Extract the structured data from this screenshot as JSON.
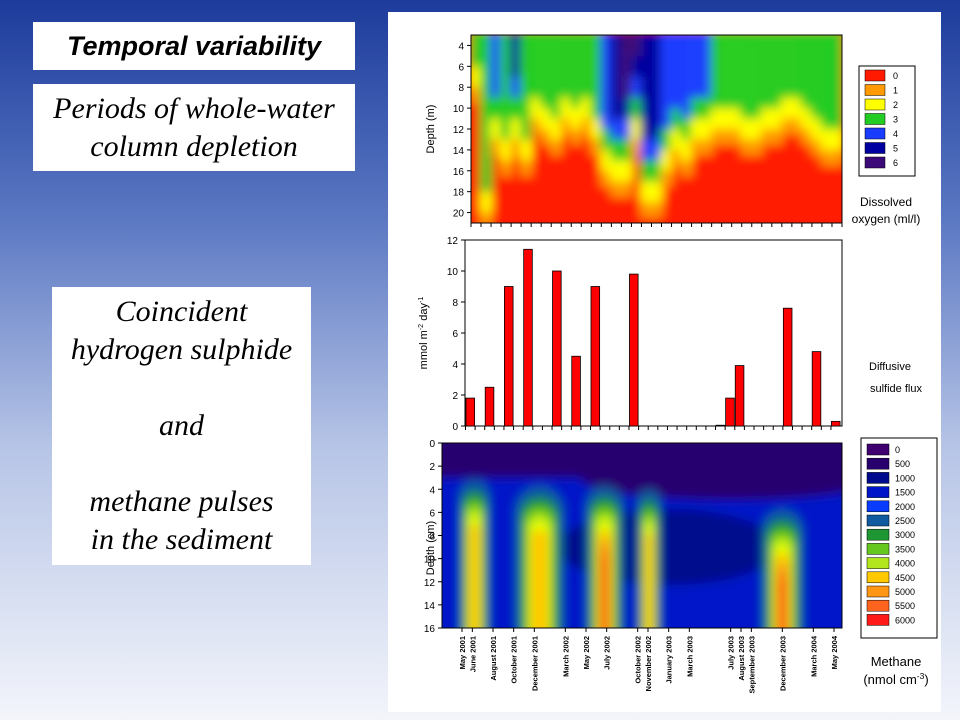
{
  "slide": {
    "title": "Temporal variability",
    "periods_text": "Periods of whole-water column depletion",
    "coincident_text": "Coincident\nhydrogen sulphide\n\nand\n\nmethane pulses\nin the sediment"
  },
  "colors": {
    "oxygen_scale": [
      "#ff1a00",
      "#ff9a00",
      "#ffff00",
      "#22cc22",
      "#1a3cff",
      "#0000a0",
      "#3c0a78"
    ],
    "methane_scale": [
      "#400070",
      "#28006e",
      "#000a8c",
      "#0014c8",
      "#0a3cff",
      "#105aa0",
      "#1e9632",
      "#64c81e",
      "#b4e61e",
      "#e6ff00",
      "#ffc800",
      "#ff9614",
      "#ff641e",
      "#ff1a1a"
    ],
    "bar_fill": "#ff0000"
  },
  "chart_data": [
    {
      "type": "heatmap",
      "ylabel": "Depth (m)",
      "y_ticks": [
        "4",
        "6",
        "8",
        "10",
        "12",
        "14",
        "16",
        "18",
        "20"
      ],
      "ylim": [
        3,
        21
      ],
      "y_inverted": true,
      "legend_title": "Dissolved oxygen (ml/l)",
      "legend": [
        "0",
        "1",
        "2",
        "3",
        "4",
        "5",
        "6"
      ],
      "legend_placement": "right"
    },
    {
      "type": "bar",
      "ylabel": "mmol m-2 day-1",
      "y_ticks": [
        "0",
        "2",
        "4",
        "6",
        "8",
        "10",
        "12"
      ],
      "ylim": [
        0,
        12
      ],
      "legend_title": "Diffusive sulfide flux",
      "values": [
        1.8,
        0,
        2.5,
        0,
        9.0,
        0,
        11.4,
        0,
        0,
        10.0,
        0,
        4.5,
        0,
        9.0,
        0,
        0,
        0,
        9.8,
        0,
        0,
        0,
        0,
        0,
        0,
        0,
        0,
        0.05,
        1.8,
        3.9,
        0,
        0,
        0,
        0,
        7.6,
        0,
        0,
        4.8,
        0,
        0.3
      ]
    },
    {
      "type": "heatmap",
      "ylabel": "Depth (cm)",
      "y_ticks": [
        "0",
        "2",
        "4",
        "6",
        "8",
        "10",
        "12",
        "14",
        "16"
      ],
      "ylim": [
        0,
        16
      ],
      "y_inverted": true,
      "legend_title": "Methane (nmol cm-3)",
      "legend": [
        "0",
        "500",
        "1000",
        "1500",
        "2000",
        "2500",
        "3000",
        "3500",
        "4000",
        "4500",
        "5000",
        "5500",
        "6000"
      ],
      "legend_placement": "right",
      "x_ticks": [
        {
          "label": "May 2001",
          "x": 0.0
        },
        {
          "label": "June 2001",
          "x": 1.0
        },
        {
          "label": "August 2001",
          "x": 3.0
        },
        {
          "label": "October 2001",
          "x": 5.0
        },
        {
          "label": "December 2001",
          "x": 7.0
        },
        {
          "label": "March 2002",
          "x": 10.0
        },
        {
          "label": "May 2002",
          "x": 12.0
        },
        {
          "label": "July 2002",
          "x": 14.0
        },
        {
          "label": "October 2002",
          "x": 17.0
        },
        {
          "label": "November 2002",
          "x": 18.0
        },
        {
          "label": "January 2003",
          "x": 20.0
        },
        {
          "label": "March 2003",
          "x": 22.0
        },
        {
          "label": "July 2003",
          "x": 26.0
        },
        {
          "label": "August 2003",
          "x": 27.0
        },
        {
          "label": "September 2003",
          "x": 28.0
        },
        {
          "label": "December 2003",
          "x": 31.0
        },
        {
          "label": "March 2004",
          "x": 34.0
        },
        {
          "label": "May 2004",
          "x": 36.0
        }
      ]
    }
  ]
}
